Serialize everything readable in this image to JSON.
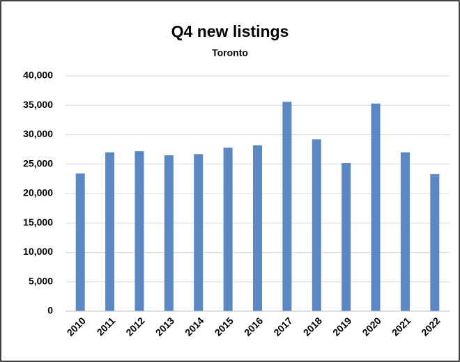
{
  "chart_data": {
    "type": "bar",
    "title": "Q4 new listings",
    "subtitle": "Toronto",
    "categories": [
      "2010",
      "2011",
      "2012",
      "2013",
      "2014",
      "2015",
      "2016",
      "2017",
      "2018",
      "2019",
      "2020",
      "2021",
      "2022"
    ],
    "values": [
      23400,
      27000,
      27200,
      26500,
      26700,
      27800,
      28200,
      35600,
      29200,
      25200,
      35300,
      27000,
      23300
    ],
    "color": "#5b87c5",
    "ylim": [
      0,
      40000
    ],
    "yticks": [
      0,
      {
        "value": 5000,
        "label": "5,000"
      },
      {
        "value": 10000,
        "label": "10,000"
      },
      {
        "value": 15000,
        "label": "15,000"
      },
      {
        "value": 20000,
        "label": "20,000"
      },
      {
        "value": 25000,
        "label": "25,000"
      },
      {
        "value": 30000,
        "label": "30,000"
      },
      {
        "value": 35000,
        "label": "35,000"
      },
      {
        "value": 40000,
        "label": "40,000"
      }
    ],
    "grid": true
  }
}
